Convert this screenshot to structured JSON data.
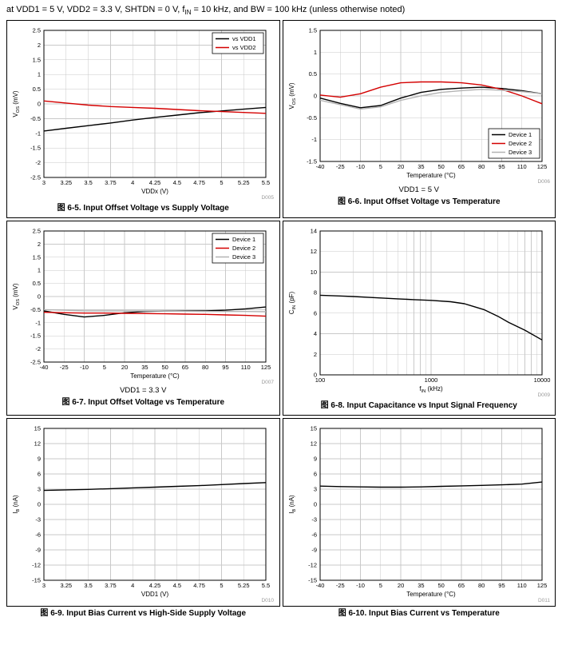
{
  "header": {
    "conditions": "at VDD1 = 5 V, VDD2 = 3.3 V, SHTDN = 0 V, f~IN~ = 10 kHz, and BW = 100 kHz (unless otherwise noted)"
  },
  "colors": {
    "black": "#000000",
    "red": "#d40000",
    "gray": "#b3b3b3",
    "grid": "#c9c9c9",
    "watermark": "#9a9a9a"
  },
  "chart_data": [
    {
      "type": "line",
      "caption": "图 6-5. Input Offset Voltage vs Supply Voltage",
      "watermark": "D005",
      "xlabel": "VDDx (V)",
      "ylabel": "V~OS~ (mV)",
      "xlim": [
        3,
        5.5
      ],
      "xticks": [
        3,
        3.25,
        3.5,
        3.75,
        4,
        4.25,
        4.5,
        4.75,
        5,
        5.25,
        5.5
      ],
      "ylim": [
        -2.5,
        2.5
      ],
      "yticks": [
        -2.5,
        -2,
        -1.5,
        -1,
        -0.5,
        0,
        0.5,
        1,
        1.5,
        2,
        2.5
      ],
      "legend": {
        "position": "top-right",
        "entries": [
          {
            "label": "vs VDD1",
            "color": "#000000"
          },
          {
            "label": "vs VDD2",
            "color": "#d40000"
          }
        ]
      },
      "series": [
        {
          "name": "vs VDD1",
          "color": "#000000",
          "x": [
            3,
            3.25,
            3.5,
            3.75,
            4,
            4.25,
            4.5,
            4.75,
            5,
            5.25,
            5.5
          ],
          "y": [
            -0.92,
            -0.83,
            -0.74,
            -0.65,
            -0.55,
            -0.46,
            -0.38,
            -0.3,
            -0.24,
            -0.18,
            -0.12
          ]
        },
        {
          "name": "vs VDD2",
          "color": "#d40000",
          "x": [
            3,
            3.25,
            3.5,
            3.75,
            4,
            4.25,
            4.5,
            4.75,
            5,
            5.25,
            5.5
          ],
          "y": [
            0.1,
            0.03,
            -0.04,
            -0.09,
            -0.12,
            -0.15,
            -0.19,
            -0.23,
            -0.26,
            -0.29,
            -0.32
          ]
        }
      ]
    },
    {
      "type": "line",
      "caption": "图 6-6. Input Offset Voltage vs Temperature",
      "subtitle": "VDD1 = 5 V",
      "watermark": "D006",
      "xlabel": "Temperature (°C)",
      "ylabel": "V~OS~ (mV)",
      "xlim": [
        -40,
        125
      ],
      "xticks": [
        -40,
        -25,
        -10,
        5,
        20,
        35,
        50,
        65,
        80,
        95,
        110,
        125
      ],
      "ylim": [
        -1.5,
        1.5
      ],
      "yticks": [
        -1.5,
        -1,
        -0.5,
        0,
        0.5,
        1,
        1.5
      ],
      "legend": {
        "position": "bottom-right",
        "entries": [
          {
            "label": "Device 1",
            "color": "#000000"
          },
          {
            "label": "Device 2",
            "color": "#d40000"
          },
          {
            "label": "Device 3",
            "color": "#b3b3b3"
          }
        ]
      },
      "series": [
        {
          "name": "Device 1",
          "color": "#000000",
          "x": [
            -40,
            -25,
            -10,
            5,
            20,
            35,
            50,
            65,
            80,
            95,
            110,
            125
          ],
          "y": [
            -0.05,
            -0.17,
            -0.27,
            -0.22,
            -0.05,
            0.08,
            0.15,
            0.18,
            0.2,
            0.17,
            0.12,
            0.05
          ]
        },
        {
          "name": "Device 2",
          "color": "#d40000",
          "x": [
            -40,
            -25,
            -10,
            5,
            20,
            35,
            50,
            65,
            80,
            95,
            110,
            125
          ],
          "y": [
            0.02,
            -0.03,
            0.05,
            0.2,
            0.3,
            0.32,
            0.32,
            0.3,
            0.25,
            0.15,
            0.0,
            -0.18
          ]
        },
        {
          "name": "Device 3",
          "color": "#b3b3b3",
          "x": [
            -40,
            -25,
            -10,
            5,
            20,
            35,
            50,
            65,
            80,
            95,
            110,
            125
          ],
          "y": [
            -0.1,
            -0.2,
            -0.3,
            -0.25,
            -0.1,
            0.0,
            0.08,
            0.12,
            0.15,
            0.13,
            0.1,
            0.05
          ]
        }
      ]
    },
    {
      "type": "line",
      "caption": "图 6-7. Input Offset Voltage vs Temperature",
      "subtitle": "VDD1 = 3.3 V",
      "watermark": "D007",
      "xlabel": "Temperature (°C)",
      "ylabel": "V~OS~ (mV)",
      "xlim": [
        -40,
        125
      ],
      "xticks": [
        -40,
        -25,
        -10,
        5,
        20,
        35,
        50,
        65,
        80,
        95,
        110,
        125
      ],
      "ylim": [
        -2.5,
        2.5
      ],
      "yticks": [
        -2.5,
        -2,
        -1.5,
        -1,
        -0.5,
        0,
        0.5,
        1,
        1.5,
        2,
        2.5
      ],
      "legend": {
        "position": "top-right",
        "entries": [
          {
            "label": "Device 1",
            "color": "#000000"
          },
          {
            "label": "Device 2",
            "color": "#d40000"
          },
          {
            "label": "Device 3",
            "color": "#b3b3b3"
          }
        ]
      },
      "series": [
        {
          "name": "Device 1",
          "color": "#000000",
          "x": [
            -40,
            -25,
            -10,
            5,
            20,
            35,
            50,
            65,
            80,
            95,
            110,
            125
          ],
          "y": [
            -0.55,
            -0.68,
            -0.78,
            -0.72,
            -0.62,
            -0.57,
            -0.55,
            -0.55,
            -0.55,
            -0.52,
            -0.47,
            -0.4
          ]
        },
        {
          "name": "Device 2",
          "color": "#d40000",
          "x": [
            -40,
            -25,
            -10,
            5,
            20,
            35,
            50,
            65,
            80,
            95,
            110,
            125
          ],
          "y": [
            -0.6,
            -0.62,
            -0.63,
            -0.63,
            -0.64,
            -0.65,
            -0.66,
            -0.67,
            -0.68,
            -0.7,
            -0.72,
            -0.75
          ]
        },
        {
          "name": "Device 3",
          "color": "#b3b3b3",
          "x": [
            -40,
            -25,
            -10,
            5,
            20,
            35,
            50,
            65,
            80,
            95,
            110,
            125
          ],
          "y": [
            -0.5,
            -0.52,
            -0.55,
            -0.55,
            -0.55,
            -0.55,
            -0.55,
            -0.56,
            -0.57,
            -0.57,
            -0.57,
            -0.58
          ]
        }
      ]
    },
    {
      "type": "line",
      "caption": "图 6-8. Input Capacitance vs Input Signal Frequency",
      "watermark": "D009",
      "xlabel": "f~IN~ (kHz)",
      "ylabel": "C~IN~ (pF)",
      "xscale": "log",
      "xlim": [
        100,
        10000
      ],
      "xticks": [
        100,
        1000,
        10000
      ],
      "ylim": [
        0,
        14
      ],
      "yticks": [
        0,
        2,
        4,
        6,
        8,
        10,
        12,
        14
      ],
      "series": [
        {
          "name": "CIN",
          "color": "#000000",
          "x": [
            100,
            150,
            200,
            300,
            500,
            700,
            1000,
            1500,
            2000,
            3000,
            4000,
            5000,
            7000,
            10000
          ],
          "y": [
            7.75,
            7.68,
            7.62,
            7.52,
            7.4,
            7.32,
            7.25,
            7.12,
            6.92,
            6.35,
            5.7,
            5.1,
            4.35,
            3.4
          ]
        }
      ]
    },
    {
      "type": "line",
      "caption": "图 6-9. Input Bias Current vs High-Side Supply Voltage",
      "watermark": "D010",
      "xlabel": "VDD1 (V)",
      "ylabel": "I~B~ (nA)",
      "xlim": [
        3,
        5.5
      ],
      "xticks": [
        3,
        3.25,
        3.5,
        3.75,
        4,
        4.25,
        4.5,
        4.75,
        5,
        5.25,
        5.5
      ],
      "ylim": [
        -15,
        15
      ],
      "yticks": [
        -15,
        -12,
        -9,
        -6,
        -3,
        0,
        3,
        6,
        9,
        12,
        15
      ],
      "series": [
        {
          "name": "IB",
          "color": "#000000",
          "x": [
            3,
            3.25,
            3.5,
            3.75,
            4,
            4.25,
            4.5,
            4.75,
            5,
            5.25,
            5.5
          ],
          "y": [
            2.75,
            2.85,
            2.95,
            3.1,
            3.25,
            3.4,
            3.55,
            3.7,
            3.9,
            4.1,
            4.3
          ]
        }
      ]
    },
    {
      "type": "line",
      "caption": "图 6-10. Input Bias Current vs Temperature",
      "watermark": "D011",
      "xlabel": "Temperature (°C)",
      "ylabel": "I~B~ (nA)",
      "xlim": [
        -40,
        125
      ],
      "xticks": [
        -40,
        -25,
        -10,
        5,
        20,
        35,
        50,
        65,
        80,
        95,
        110,
        125
      ],
      "ylim": [
        -15,
        15
      ],
      "yticks": [
        -15,
        -12,
        -9,
        -6,
        -3,
        0,
        3,
        6,
        9,
        12,
        15
      ],
      "series": [
        {
          "name": "IB",
          "color": "#000000",
          "x": [
            -40,
            -25,
            -10,
            5,
            20,
            35,
            50,
            65,
            80,
            95,
            110,
            125
          ],
          "y": [
            3.6,
            3.5,
            3.45,
            3.4,
            3.4,
            3.45,
            3.55,
            3.65,
            3.75,
            3.85,
            4.0,
            4.4
          ]
        }
      ]
    }
  ]
}
